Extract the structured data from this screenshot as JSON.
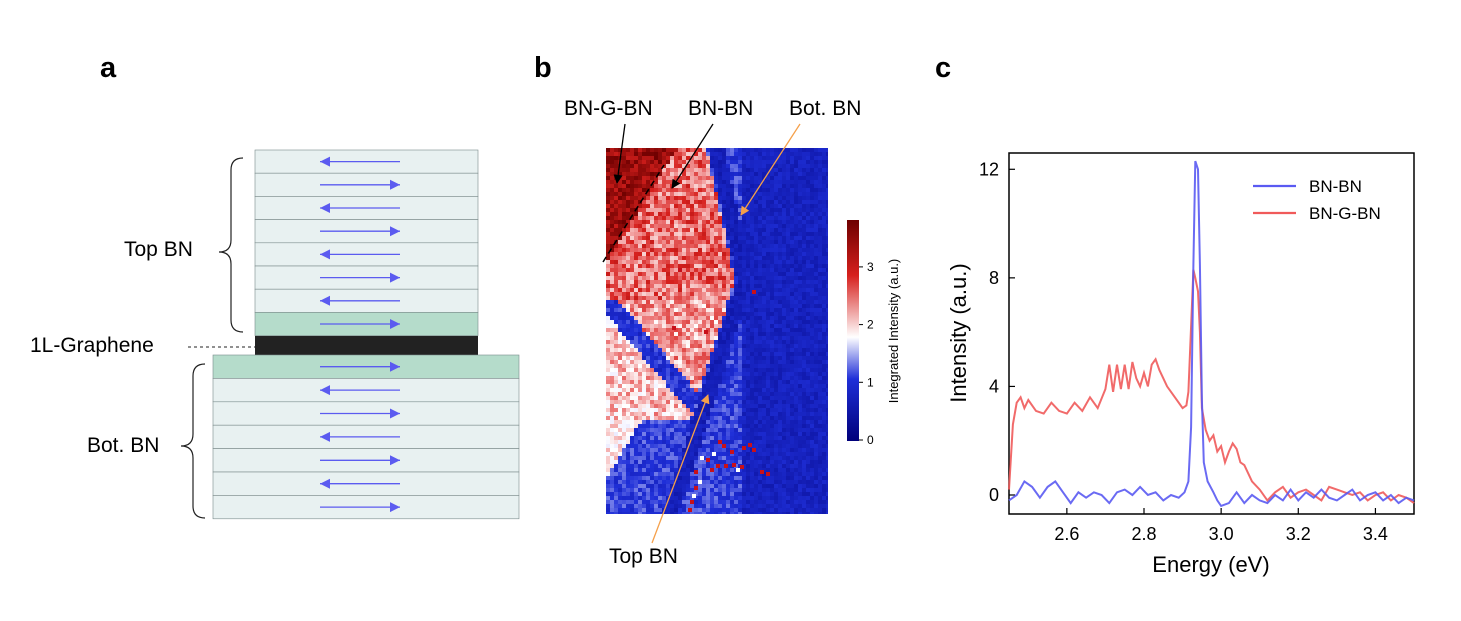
{
  "panels": {
    "a": {
      "letter": "a",
      "top_label": "Top BN",
      "graphene_label": "1L-Graphene",
      "bot_label": "Bot. BN",
      "top_layer_directions": [
        "left",
        "right",
        "left",
        "right",
        "left",
        "right",
        "left",
        "right"
      ],
      "bot_layer_directions": [
        "right",
        "left",
        "right",
        "left",
        "right",
        "left",
        "right"
      ],
      "colors": {
        "layer": "#e8f1f1",
        "highlight": "#b5dccb",
        "graphene": "#222222",
        "arrow": "#5b5bf0"
      }
    },
    "b": {
      "letter": "b",
      "labels": {
        "bn_g_bn": "BN-G-BN",
        "bn_bn": "BN-BN",
        "bot_bn": "Bot. BN",
        "top_bn": "Top BN"
      },
      "colorbar": {
        "title": "Integrated Intensity (a.u.)",
        "ticks": [
          "0",
          "1",
          "2",
          "3"
        ],
        "colors": [
          "#00007a",
          "#1f2fd8",
          "#ffffff",
          "#d6201d",
          "#6e0000"
        ]
      },
      "annotation_colors": {
        "black": "#000000",
        "orange": "#f5a04a"
      }
    },
    "c": {
      "letter": "c"
    }
  },
  "chart_data": {
    "type": "line",
    "title": "",
    "xlabel": "Energy (eV)",
    "ylabel": "Intensity (a.u.)",
    "xlim": [
      2.45,
      3.5
    ],
    "ylim": [
      -0.7,
      12.6
    ],
    "xticks": [
      "2.6",
      "2.8",
      "3.0",
      "3.2",
      "3.4"
    ],
    "yticks": [
      "0",
      "4",
      "8",
      "12"
    ],
    "legend_position": "top-right",
    "series": [
      {
        "name": "BN-BN",
        "color": "#5a5af2",
        "points": [
          [
            2.45,
            -0.2
          ],
          [
            2.47,
            0.0
          ],
          [
            2.49,
            0.5
          ],
          [
            2.51,
            0.3
          ],
          [
            2.53,
            -0.1
          ],
          [
            2.55,
            0.3
          ],
          [
            2.57,
            0.5
          ],
          [
            2.59,
            0.1
          ],
          [
            2.61,
            -0.3
          ],
          [
            2.63,
            0.1
          ],
          [
            2.65,
            -0.1
          ],
          [
            2.67,
            0.1
          ],
          [
            2.69,
            0.0
          ],
          [
            2.71,
            -0.3
          ],
          [
            2.73,
            0.1
          ],
          [
            2.75,
            0.2
          ],
          [
            2.77,
            0.0
          ],
          [
            2.79,
            0.3
          ],
          [
            2.81,
            0.0
          ],
          [
            2.83,
            0.1
          ],
          [
            2.85,
            -0.2
          ],
          [
            2.87,
            0.0
          ],
          [
            2.89,
            -0.1
          ],
          [
            2.905,
            0.1
          ],
          [
            2.915,
            0.5
          ],
          [
            2.922,
            2.5
          ],
          [
            2.928,
            8.5
          ],
          [
            2.933,
            12.3
          ],
          [
            2.94,
            12.0
          ],
          [
            2.945,
            8.5
          ],
          [
            2.95,
            3.5
          ],
          [
            2.955,
            1.2
          ],
          [
            2.965,
            0.5
          ],
          [
            2.98,
            0.1
          ],
          [
            2.99,
            -0.2
          ],
          [
            3.0,
            -0.4
          ],
          [
            3.02,
            -0.3
          ],
          [
            3.04,
            0.1
          ],
          [
            3.06,
            -0.3
          ],
          [
            3.08,
            0.0
          ],
          [
            3.1,
            -0.2
          ],
          [
            3.12,
            -0.3
          ],
          [
            3.14,
            0.0
          ],
          [
            3.16,
            -0.2
          ],
          [
            3.18,
            0.2
          ],
          [
            3.2,
            -0.2
          ],
          [
            3.22,
            0.1
          ],
          [
            3.24,
            -0.1
          ],
          [
            3.26,
            0.2
          ],
          [
            3.28,
            -0.1
          ],
          [
            3.3,
            -0.2
          ],
          [
            3.32,
            0.0
          ],
          [
            3.34,
            0.2
          ],
          [
            3.36,
            -0.2
          ],
          [
            3.38,
            0.0
          ],
          [
            3.4,
            0.1
          ],
          [
            3.42,
            -0.2
          ],
          [
            3.44,
            0.0
          ],
          [
            3.46,
            -0.3
          ],
          [
            3.48,
            -0.1
          ],
          [
            3.5,
            -0.2
          ]
        ]
      },
      {
        "name": "BN-G-BN",
        "color": "#f05a5a",
        "points": [
          [
            2.45,
            0.2
          ],
          [
            2.46,
            2.6
          ],
          [
            2.47,
            3.4
          ],
          [
            2.48,
            3.6
          ],
          [
            2.49,
            3.2
          ],
          [
            2.5,
            3.5
          ],
          [
            2.52,
            3.1
          ],
          [
            2.54,
            3.0
          ],
          [
            2.56,
            3.4
          ],
          [
            2.58,
            3.1
          ],
          [
            2.6,
            3.0
          ],
          [
            2.62,
            3.4
          ],
          [
            2.64,
            3.1
          ],
          [
            2.66,
            3.6
          ],
          [
            2.68,
            3.2
          ],
          [
            2.7,
            3.9
          ],
          [
            2.71,
            4.8
          ],
          [
            2.72,
            3.8
          ],
          [
            2.73,
            4.8
          ],
          [
            2.74,
            3.9
          ],
          [
            2.75,
            4.8
          ],
          [
            2.76,
            3.9
          ],
          [
            2.77,
            4.9
          ],
          [
            2.78,
            4.3
          ],
          [
            2.79,
            4.0
          ],
          [
            2.8,
            4.5
          ],
          [
            2.81,
            4.0
          ],
          [
            2.82,
            4.8
          ],
          [
            2.83,
            5.0
          ],
          [
            2.84,
            4.6
          ],
          [
            2.85,
            4.3
          ],
          [
            2.86,
            4.0
          ],
          [
            2.88,
            3.6
          ],
          [
            2.9,
            3.2
          ],
          [
            2.91,
            3.3
          ],
          [
            2.915,
            3.8
          ],
          [
            2.92,
            5.5
          ],
          [
            2.928,
            8.3
          ],
          [
            2.933,
            8.0
          ],
          [
            2.94,
            7.5
          ],
          [
            2.945,
            6.0
          ],
          [
            2.95,
            3.2
          ],
          [
            2.96,
            2.4
          ],
          [
            2.97,
            2.0
          ],
          [
            2.98,
            2.2
          ],
          [
            2.99,
            1.6
          ],
          [
            3.0,
            1.8
          ],
          [
            3.01,
            1.2
          ],
          [
            3.02,
            1.6
          ],
          [
            3.03,
            1.9
          ],
          [
            3.04,
            1.7
          ],
          [
            3.05,
            1.2
          ],
          [
            3.06,
            1.1
          ],
          [
            3.08,
            0.5
          ],
          [
            3.1,
            0.2
          ],
          [
            3.12,
            -0.2
          ],
          [
            3.14,
            0.1
          ],
          [
            3.16,
            0.3
          ],
          [
            3.18,
            -0.1
          ],
          [
            3.2,
            0.1
          ],
          [
            3.22,
            0.2
          ],
          [
            3.24,
            0.0
          ],
          [
            3.26,
            -0.2
          ],
          [
            3.28,
            0.3
          ],
          [
            3.3,
            0.2
          ],
          [
            3.32,
            0.1
          ],
          [
            3.34,
            0.0
          ],
          [
            3.36,
            0.1
          ],
          [
            3.38,
            -0.2
          ],
          [
            3.4,
            0.0
          ],
          [
            3.42,
            0.1
          ],
          [
            3.44,
            -0.2
          ],
          [
            3.46,
            0.0
          ],
          [
            3.48,
            -0.1
          ],
          [
            3.5,
            -0.3
          ]
        ]
      }
    ]
  }
}
